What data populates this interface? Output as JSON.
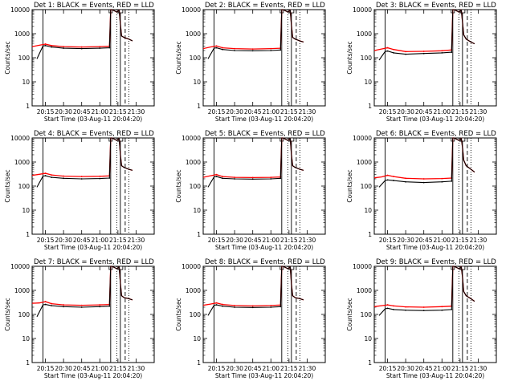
{
  "common": {
    "title_template": "Det {d}: BLACK = Events, RED = LLD",
    "xlabel": "Start Time (03-Aug-11 20:04:20)",
    "ylabel": "Counts/sec",
    "y_ticks": [
      "1",
      "10",
      "100",
      "1000",
      "10000"
    ],
    "x_ticks": [
      "20:15",
      "20:30",
      "20:45",
      "21:00",
      "21:15",
      "21:30"
    ],
    "colors": {
      "events": "#000000",
      "lld": "#ff0000",
      "axes": "#000000"
    }
  },
  "chart_data": [
    {
      "type": "line",
      "title": "Det 1: BLACK = Events, RED = LLD",
      "xlabel": "Start Time (03-Aug-11 20:04:20)",
      "ylabel": "Counts/sec",
      "yscale": "log",
      "ylim": [
        1,
        10000
      ],
      "xlim": [
        "20:04",
        "21:45"
      ],
      "x_ticks": [
        "20:15",
        "20:30",
        "20:45",
        "21:00",
        "21:15",
        "21:30"
      ],
      "series": [
        {
          "name": "Events",
          "color": "#000000",
          "x": [
            "20:08",
            "20:13",
            "20:15",
            "20:20",
            "20:30",
            "20:45",
            "21:00",
            "21:08",
            "21:09",
            "21:10",
            "21:12",
            "21:14",
            "21:16",
            "21:17",
            "21:18",
            "21:20",
            "21:24",
            "21:27"
          ],
          "y": [
            90,
            310,
            320,
            280,
            250,
            240,
            250,
            260,
            10000,
            10000,
            9000,
            8000,
            9500,
            2500,
            800,
            700,
            600,
            500
          ]
        },
        {
          "name": "LLD",
          "color": "#ff0000",
          "x": [
            "20:04",
            "20:10",
            "20:15",
            "20:20",
            "20:30",
            "20:45",
            "21:00",
            "21:08",
            "21:09",
            "21:10",
            "21:12",
            "21:14",
            "21:16",
            "21:17",
            "21:18",
            "21:20",
            "21:24",
            "21:27"
          ],
          "y": [
            290,
            330,
            370,
            320,
            290,
            280,
            290,
            300,
            10000,
            10000,
            9000,
            8000,
            9500,
            2500,
            800,
            700,
            600,
            500
          ]
        }
      ]
    },
    {
      "type": "line",
      "title": "Det 2: BLACK = Events, RED = LLD",
      "xlabel": "Start Time (03-Aug-11 20:04:20)",
      "ylabel": "Counts/sec",
      "yscale": "log",
      "ylim": [
        1,
        10000
      ],
      "xlim": [
        "20:04",
        "21:45"
      ],
      "x_ticks": [
        "20:15",
        "20:30",
        "20:45",
        "21:00",
        "21:15",
        "21:30"
      ],
      "series": [
        {
          "name": "Events",
          "color": "#000000",
          "x": [
            "20:08",
            "20:13",
            "20:15",
            "20:20",
            "20:30",
            "20:45",
            "21:00",
            "21:08",
            "21:09",
            "21:10",
            "21:12",
            "21:14",
            "21:16",
            "21:17",
            "21:18",
            "21:20",
            "21:24",
            "21:27"
          ],
          "y": [
            90,
            250,
            260,
            220,
            200,
            195,
            200,
            210,
            10000,
            10000,
            9000,
            8000,
            9500,
            2200,
            700,
            600,
            500,
            450
          ]
        },
        {
          "name": "LLD",
          "color": "#ff0000",
          "x": [
            "20:04",
            "20:10",
            "20:15",
            "20:20",
            "20:30",
            "20:45",
            "21:00",
            "21:08",
            "21:09",
            "21:10",
            "21:12",
            "21:14",
            "21:16",
            "21:17",
            "21:18",
            "21:20",
            "21:24",
            "21:27"
          ],
          "y": [
            240,
            280,
            310,
            260,
            240,
            230,
            240,
            250,
            10000,
            10000,
            9000,
            8000,
            9500,
            2200,
            700,
            600,
            500,
            450
          ]
        }
      ]
    },
    {
      "type": "line",
      "title": "Det 3: BLACK = Events, RED = LLD",
      "xlabel": "Start Time (03-Aug-11 20:04:20)",
      "ylabel": "Counts/sec",
      "yscale": "log",
      "ylim": [
        1,
        10000
      ],
      "xlim": [
        "20:04",
        "21:45"
      ],
      "x_ticks": [
        "20:15",
        "20:30",
        "20:45",
        "21:00",
        "21:15",
        "21:30"
      ],
      "series": [
        {
          "name": "Events",
          "color": "#000000",
          "x": [
            "20:08",
            "20:13",
            "20:15",
            "20:20",
            "20:30",
            "20:45",
            "21:00",
            "21:08",
            "21:09",
            "21:10",
            "21:12",
            "21:14",
            "21:16",
            "21:17",
            "21:18",
            "21:20",
            "21:24",
            "21:27"
          ],
          "y": [
            80,
            180,
            190,
            160,
            140,
            150,
            160,
            170,
            10000,
            10000,
            9000,
            8000,
            9500,
            3000,
            900,
            600,
            450,
            380
          ]
        },
        {
          "name": "LLD",
          "color": "#ff0000",
          "x": [
            "20:04",
            "20:10",
            "20:15",
            "20:20",
            "20:30",
            "20:45",
            "21:00",
            "21:08",
            "21:09",
            "21:10",
            "21:12",
            "21:14",
            "21:16",
            "21:17",
            "21:18",
            "21:20",
            "21:24",
            "21:27"
          ],
          "y": [
            200,
            230,
            260,
            220,
            180,
            185,
            195,
            210,
            10000,
            10000,
            9000,
            8000,
            9500,
            3000,
            900,
            600,
            450,
            380
          ]
        }
      ]
    },
    {
      "type": "line",
      "title": "Det 4: BLACK = Events, RED = LLD",
      "xlabel": "Start Time (03-Aug-11 20:04:20)",
      "ylabel": "Counts/sec",
      "yscale": "log",
      "ylim": [
        1,
        10000
      ],
      "xlim": [
        "20:04",
        "21:45"
      ],
      "x_ticks": [
        "20:15",
        "20:30",
        "20:45",
        "21:00",
        "21:15",
        "21:30"
      ],
      "series": [
        {
          "name": "Events",
          "color": "#000000",
          "x": [
            "20:08",
            "20:13",
            "20:15",
            "20:20",
            "20:30",
            "20:45",
            "21:00",
            "21:08",
            "21:09",
            "21:10",
            "21:12",
            "21:14",
            "21:16",
            "21:17",
            "21:18",
            "21:20",
            "21:24",
            "21:27"
          ],
          "y": [
            90,
            260,
            270,
            230,
            210,
            200,
            205,
            215,
            10000,
            10000,
            9000,
            8000,
            9500,
            2000,
            700,
            600,
            500,
            450
          ]
        },
        {
          "name": "LLD",
          "color": "#ff0000",
          "x": [
            "20:04",
            "20:10",
            "20:15",
            "20:20",
            "20:30",
            "20:45",
            "21:00",
            "21:08",
            "21:09",
            "21:10",
            "21:12",
            "21:14",
            "21:16",
            "21:17",
            "21:18",
            "21:20",
            "21:24",
            "21:27"
          ],
          "y": [
            280,
            310,
            340,
            290,
            260,
            250,
            255,
            265,
            10000,
            10000,
            9000,
            8000,
            9500,
            2000,
            700,
            600,
            500,
            450
          ]
        }
      ]
    },
    {
      "type": "line",
      "title": "Det 5: BLACK = Events, RED = LLD",
      "xlabel": "Start Time (03-Aug-11 20:04:20)",
      "ylabel": "Counts/sec",
      "yscale": "log",
      "ylim": [
        1,
        10000
      ],
      "xlim": [
        "20:04",
        "21:45"
      ],
      "x_ticks": [
        "20:15",
        "20:30",
        "20:45",
        "21:00",
        "21:15",
        "21:30"
      ],
      "series": [
        {
          "name": "Events",
          "color": "#000000",
          "x": [
            "20:08",
            "20:13",
            "20:15",
            "20:20",
            "20:30",
            "20:45",
            "21:00",
            "21:08",
            "21:09",
            "21:10",
            "21:12",
            "21:14",
            "21:16",
            "21:17",
            "21:18",
            "21:20",
            "21:24",
            "21:27"
          ],
          "y": [
            90,
            240,
            250,
            210,
            200,
            195,
            200,
            210,
            10000,
            10000,
            9000,
            8000,
            9500,
            2000,
            700,
            600,
            500,
            450
          ]
        },
        {
          "name": "LLD",
          "color": "#ff0000",
          "x": [
            "20:04",
            "20:10",
            "20:15",
            "20:20",
            "20:30",
            "20:45",
            "21:00",
            "21:08",
            "21:09",
            "21:10",
            "21:12",
            "21:14",
            "21:16",
            "21:17",
            "21:18",
            "21:20",
            "21:24",
            "21:27"
          ],
          "y": [
            230,
            270,
            300,
            250,
            230,
            225,
            230,
            240,
            10000,
            10000,
            9000,
            8000,
            9500,
            2000,
            700,
            600,
            500,
            450
          ]
        }
      ]
    },
    {
      "type": "line",
      "title": "Det 6: BLACK = Events, RED = LLD",
      "xlabel": "Start Time (03-Aug-11 20:04:20)",
      "ylabel": "Counts/sec",
      "yscale": "log",
      "ylim": [
        1,
        10000
      ],
      "xlim": [
        "20:04",
        "21:45"
      ],
      "x_ticks": [
        "20:15",
        "20:30",
        "20:45",
        "21:00",
        "21:15",
        "21:30"
      ],
      "series": [
        {
          "name": "Events",
          "color": "#000000",
          "x": [
            "20:08",
            "20:13",
            "20:15",
            "20:20",
            "20:30",
            "20:45",
            "21:00",
            "21:08",
            "21:09",
            "21:10",
            "21:12",
            "21:14",
            "21:16",
            "21:17",
            "21:18",
            "21:20",
            "21:24",
            "21:27"
          ],
          "y": [
            90,
            170,
            180,
            170,
            150,
            140,
            150,
            160,
            10000,
            10000,
            9000,
            8000,
            9500,
            4000,
            1200,
            700,
            500,
            380
          ]
        },
        {
          "name": "LLD",
          "color": "#ff0000",
          "x": [
            "20:04",
            "20:10",
            "20:15",
            "20:20",
            "20:30",
            "20:45",
            "21:00",
            "21:08",
            "21:09",
            "21:10",
            "21:12",
            "21:14",
            "21:16",
            "21:17",
            "21:18",
            "21:20",
            "21:24",
            "21:27"
          ],
          "y": [
            220,
            240,
            280,
            250,
            210,
            200,
            205,
            215,
            10000,
            10000,
            9000,
            8000,
            9500,
            4000,
            1200,
            700,
            500,
            380
          ]
        }
      ]
    },
    {
      "type": "line",
      "title": "Det 7: BLACK = Events, RED = LLD",
      "xlabel": "Start Time (03-Aug-11 20:04:20)",
      "ylabel": "Counts/sec",
      "yscale": "log",
      "ylim": [
        1,
        10000
      ],
      "xlim": [
        "20:04",
        "21:45"
      ],
      "x_ticks": [
        "20:15",
        "20:30",
        "20:45",
        "21:00",
        "21:15",
        "21:30"
      ],
      "series": [
        {
          "name": "Events",
          "color": "#000000",
          "x": [
            "20:08",
            "20:13",
            "20:15",
            "20:20",
            "20:30",
            "20:45",
            "21:00",
            "21:08",
            "21:09",
            "21:10",
            "21:12",
            "21:14",
            "21:16",
            "21:17",
            "21:18",
            "21:20",
            "21:24",
            "21:27"
          ],
          "y": [
            80,
            250,
            260,
            230,
            210,
            200,
            210,
            220,
            10000,
            10000,
            9000,
            8000,
            9500,
            2000,
            600,
            500,
            450,
            400
          ]
        },
        {
          "name": "LLD",
          "color": "#ff0000",
          "x": [
            "20:04",
            "20:10",
            "20:15",
            "20:20",
            "20:30",
            "20:45",
            "21:00",
            "21:08",
            "21:09",
            "21:10",
            "21:12",
            "21:14",
            "21:16",
            "21:17",
            "21:18",
            "21:20",
            "21:24",
            "21:27"
          ],
          "y": [
            290,
            300,
            340,
            280,
            250,
            240,
            250,
            260,
            10000,
            10000,
            9000,
            8000,
            9500,
            2000,
            600,
            500,
            450,
            400
          ]
        }
      ]
    },
    {
      "type": "line",
      "title": "Det 8: BLACK = Events, RED = LLD",
      "xlabel": "Start Time (03-Aug-11 20:04:20)",
      "ylabel": "Counts/sec",
      "yscale": "log",
      "ylim": [
        1,
        10000
      ],
      "xlim": [
        "20:04",
        "21:45"
      ],
      "x_ticks": [
        "20:15",
        "20:30",
        "20:45",
        "21:00",
        "21:15",
        "21:30"
      ],
      "series": [
        {
          "name": "Events",
          "color": "#000000",
          "x": [
            "20:08",
            "20:13",
            "20:15",
            "20:20",
            "20:30",
            "20:45",
            "21:00",
            "21:08",
            "21:09",
            "21:10",
            "21:12",
            "21:14",
            "21:16",
            "21:17",
            "21:18",
            "21:20",
            "21:24",
            "21:27"
          ],
          "y": [
            90,
            240,
            250,
            220,
            200,
            195,
            200,
            210,
            10000,
            10000,
            9000,
            8000,
            9500,
            1800,
            600,
            500,
            450,
            400
          ]
        },
        {
          "name": "LLD",
          "color": "#ff0000",
          "x": [
            "20:04",
            "20:10",
            "20:15",
            "20:20",
            "20:30",
            "20:45",
            "21:00",
            "21:08",
            "21:09",
            "21:10",
            "21:12",
            "21:14",
            "21:16",
            "21:17",
            "21:18",
            "21:20",
            "21:24",
            "21:27"
          ],
          "y": [
            240,
            270,
            300,
            260,
            235,
            225,
            235,
            245,
            10000,
            10000,
            9000,
            8000,
            9500,
            1800,
            600,
            500,
            450,
            400
          ]
        }
      ]
    },
    {
      "type": "line",
      "title": "Det 9: BLACK = Events, RED = LLD",
      "xlabel": "Start Time (03-Aug-11 20:04:20)",
      "ylabel": "Counts/sec",
      "yscale": "log",
      "ylim": [
        1,
        10000
      ],
      "xlim": [
        "20:04",
        "21:45"
      ],
      "x_ticks": [
        "20:15",
        "20:30",
        "20:45",
        "21:00",
        "21:15",
        "21:30"
      ],
      "series": [
        {
          "name": "Events",
          "color": "#000000",
          "x": [
            "20:08",
            "20:13",
            "20:15",
            "20:20",
            "20:30",
            "20:45",
            "21:00",
            "21:08",
            "21:09",
            "21:10",
            "21:12",
            "21:14",
            "21:16",
            "21:17",
            "21:18",
            "21:20",
            "21:24",
            "21:27"
          ],
          "y": [
            90,
            170,
            180,
            160,
            150,
            145,
            150,
            160,
            10000,
            10000,
            9000,
            8000,
            9500,
            3500,
            900,
            600,
            450,
            350
          ]
        },
        {
          "name": "LLD",
          "color": "#ff0000",
          "x": [
            "20:04",
            "20:10",
            "20:15",
            "20:20",
            "20:30",
            "20:45",
            "21:00",
            "21:08",
            "21:09",
            "21:10",
            "21:12",
            "21:14",
            "21:16",
            "21:17",
            "21:18",
            "21:20",
            "21:24",
            "21:27"
          ],
          "y": [
            210,
            230,
            250,
            225,
            205,
            200,
            210,
            220,
            10000,
            10000,
            9000,
            8000,
            9500,
            3500,
            900,
            600,
            450,
            350
          ]
        }
      ]
    }
  ]
}
